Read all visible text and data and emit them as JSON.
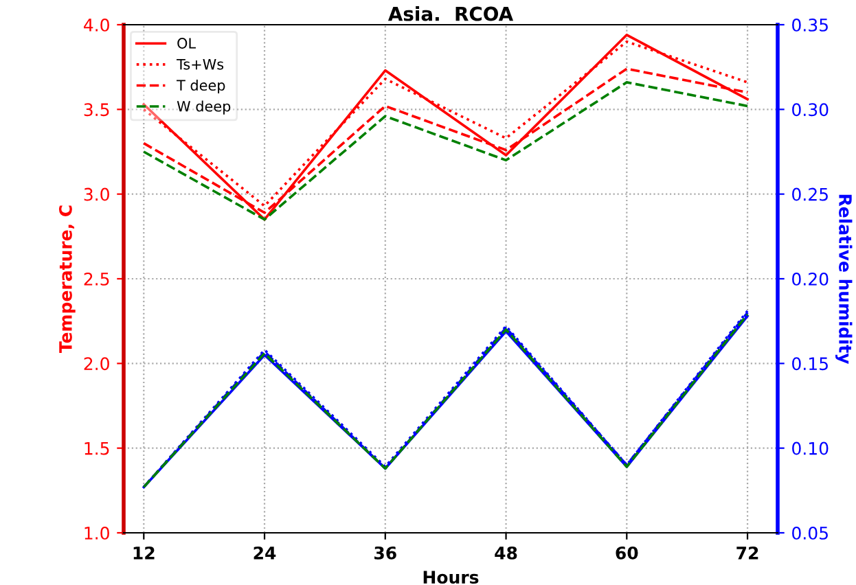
{
  "chart_data": {
    "type": "line",
    "title": "Asia.  RCOA",
    "xlabel": "Hours",
    "ylabel": "Temperature, C",
    "y2label": "Relative humidity",
    "x": [
      12,
      24,
      36,
      48,
      60,
      72
    ],
    "xlim": [
      10,
      75
    ],
    "xticks": [
      12,
      24,
      36,
      48,
      60,
      72
    ],
    "ylim": [
      1.0,
      4.0
    ],
    "yticks": [
      {
        "value": 1.0,
        "label": "1.0"
      },
      {
        "value": 1.5,
        "label": "1.5"
      },
      {
        "value": 2.0,
        "label": "2.0"
      },
      {
        "value": 2.5,
        "label": "2.5"
      },
      {
        "value": 3.0,
        "label": "3.0"
      },
      {
        "value": 3.5,
        "label": "3.5"
      },
      {
        "value": 4.0,
        "label": "4.0"
      }
    ],
    "y2lim": [
      0.05,
      0.35
    ],
    "y2ticks": [
      {
        "value": 0.05,
        "label": "0.05"
      },
      {
        "value": 0.1,
        "label": "0.10"
      },
      {
        "value": 0.15,
        "label": "0.15"
      },
      {
        "value": 0.2,
        "label": "0.20"
      },
      {
        "value": 0.25,
        "label": "0.25"
      },
      {
        "value": 0.3,
        "label": "0.30"
      },
      {
        "value": 0.35,
        "label": "0.35"
      }
    ],
    "grid": true,
    "legend": "top left",
    "marker": "none",
    "series": [
      {
        "name": "OL",
        "color": "#ff0000",
        "line_style": "solid",
        "values": [
          3.53,
          2.85,
          3.73,
          3.23,
          3.94,
          3.56
        ]
      },
      {
        "name": "Ts+Ws",
        "color": "#ff0000",
        "line_style": "dotted",
        "values": [
          3.5,
          2.93,
          3.68,
          3.33,
          3.9,
          3.66
        ]
      },
      {
        "name": "T deep",
        "color": "#ff0000",
        "line_style": "dashed",
        "values": [
          3.3,
          2.89,
          3.52,
          3.26,
          3.74,
          3.6
        ]
      },
      {
        "name": "W deep",
        "color": "#008000",
        "line_style": "dashed",
        "values": [
          3.25,
          2.85,
          3.46,
          3.2,
          3.66,
          3.52
        ]
      },
      {
        "color": "#0000ff",
        "line_style": "solid",
        "axis": "y2",
        "values": [
          0.077,
          0.155,
          0.088,
          0.169,
          0.089,
          0.178
        ]
      },
      {
        "color": "#0000ff",
        "line_style": "dotted",
        "axis": "y2",
        "values": [
          0.077,
          0.158,
          0.089,
          0.172,
          0.09,
          0.181
        ]
      },
      {
        "color": "#0000ff",
        "line_style": "dashed",
        "axis": "y2",
        "values": [
          0.077,
          0.157,
          0.088,
          0.171,
          0.09,
          0.18
        ]
      },
      {
        "color": "#008000",
        "line_style": "dashed",
        "axis": "y2",
        "values": [
          0.077,
          0.156,
          0.088,
          0.17,
          0.089,
          0.179
        ]
      }
    ]
  }
}
